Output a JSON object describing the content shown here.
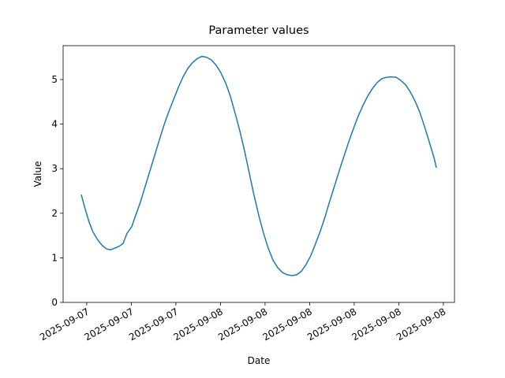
{
  "chart_data": {
    "type": "line",
    "title": "Parameter values",
    "x_label": "Date",
    "y_label": "Value",
    "x": [
      14.63,
      14.89,
      15.16,
      15.42,
      15.74,
      16.06,
      16.33,
      16.59,
      16.91,
      17.18,
      17.44,
      17.71,
      18.03,
      18.29,
      18.61,
      18.93,
      19.25,
      19.57,
      19.89,
      20.2,
      20.52,
      20.84,
      21.16,
      21.48,
      21.8,
      22.12,
      22.43,
      22.75,
      23.07,
      23.39,
      23.71,
      24.03,
      24.35,
      24.67,
      24.98,
      25.3,
      25.62,
      25.94,
      26.26,
      26.58,
      26.9,
      27.21,
      27.53,
      27.85,
      28.17,
      28.49,
      28.81,
      29.13,
      29.45,
      29.76,
      30.08,
      30.4,
      30.72,
      31.04,
      31.36,
      31.68,
      31.99,
      32.31,
      32.63,
      32.95,
      33.27,
      33.59,
      33.91,
      34.23,
      34.54,
      34.86,
      35.18,
      35.5,
      35.82,
      36.14,
      36.46,
      36.78,
      37.09,
      37.41,
      37.73,
      38.05,
      38.37,
      38.53
    ],
    "series": [
      {
        "color": "#1f77b4",
        "values": [
          2.42,
          2.1,
          1.8,
          1.58,
          1.4,
          1.27,
          1.2,
          1.18,
          1.22,
          1.26,
          1.32,
          1.55,
          1.7,
          1.95,
          2.25,
          2.6,
          2.95,
          3.3,
          3.65,
          3.98,
          4.28,
          4.55,
          4.82,
          5.06,
          5.25,
          5.38,
          5.47,
          5.52,
          5.5,
          5.44,
          5.32,
          5.15,
          4.92,
          4.62,
          4.25,
          3.85,
          3.4,
          2.9,
          2.4,
          1.95,
          1.55,
          1.22,
          0.95,
          0.78,
          0.67,
          0.62,
          0.6,
          0.62,
          0.7,
          0.85,
          1.05,
          1.32,
          1.6,
          1.92,
          2.28,
          2.62,
          2.95,
          3.28,
          3.6,
          3.9,
          4.18,
          4.42,
          4.63,
          4.8,
          4.93,
          5.02,
          5.05,
          5.06,
          5.05,
          4.98,
          4.88,
          4.72,
          4.52,
          4.27,
          3.95,
          3.6,
          3.25,
          3.02
        ]
      }
    ],
    "xlim": [
      13.41,
      39.75
    ],
    "xticks": [
      {
        "value": 15,
        "label": "2025-09-07"
      },
      {
        "value": 18,
        "label": "2025-09-07"
      },
      {
        "value": 21,
        "label": "2025-09-07"
      },
      {
        "value": 24,
        "label": "2025-09-08"
      },
      {
        "value": 27,
        "label": "2025-09-08"
      },
      {
        "value": 30,
        "label": "2025-09-08"
      },
      {
        "value": 33,
        "label": "2025-09-08"
      },
      {
        "value": 36,
        "label": "2025-09-08"
      },
      {
        "value": 39,
        "label": "2025-09-08"
      }
    ],
    "ylim": [
      0,
      5.76
    ],
    "yticks": [
      0,
      1,
      2,
      3,
      4,
      5
    ]
  }
}
